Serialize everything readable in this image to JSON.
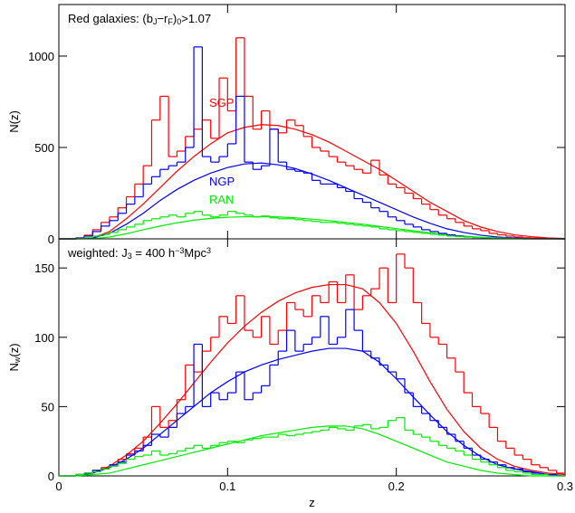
{
  "chart_data": [
    {
      "type": "histogram",
      "annotation": [
        {
          "text": "Red galaxies: (b",
          "shift": "none"
        },
        {
          "text": "J",
          "shift": "sub"
        },
        {
          "text": "−r",
          "shift": "none"
        },
        {
          "text": "F",
          "shift": "sub"
        },
        {
          "text": ")",
          "shift": "none"
        },
        {
          "text": "0",
          "shift": "sub"
        },
        {
          "text": ">1.07",
          "shift": "none"
        }
      ],
      "ylabel": [
        {
          "text": "N(z)",
          "shift": "none"
        }
      ],
      "xlim": [
        0,
        0.3
      ],
      "ylim": [
        0,
        1282
      ],
      "xticks": [
        0,
        0.1,
        0.2,
        0.3
      ],
      "yticks": [
        0,
        500,
        1000
      ],
      "show_xtick_labels": false,
      "bins": [
        0,
        0.005,
        0.01,
        0.015,
        0.02,
        0.025,
        0.03,
        0.035,
        0.04,
        0.045,
        0.05,
        0.055,
        0.06,
        0.065,
        0.07,
        0.075,
        0.08,
        0.085,
        0.09,
        0.095,
        0.1,
        0.105,
        0.11,
        0.115,
        0.12,
        0.125,
        0.13,
        0.135,
        0.14,
        0.145,
        0.15,
        0.155,
        0.16,
        0.165,
        0.17,
        0.175,
        0.18,
        0.185,
        0.19,
        0.195,
        0.2,
        0.205,
        0.21,
        0.215,
        0.22,
        0.225,
        0.23,
        0.235,
        0.24,
        0.245,
        0.25,
        0.255,
        0.26,
        0.265,
        0.27,
        0.275,
        0.28,
        0.285,
        0.29,
        0.295,
        0.3
      ],
      "series": [
        {
          "name": "SGP",
          "color": "#ff0000",
          "values": [
            0,
            0,
            5,
            20,
            50,
            90,
            120,
            170,
            230,
            300,
            400,
            650,
            780,
            450,
            480,
            560,
            600,
            650,
            550,
            880,
            700,
            1100,
            780,
            600,
            700,
            600,
            580,
            650,
            620,
            560,
            500,
            480,
            450,
            420,
            400,
            380,
            360,
            430,
            350,
            300,
            280,
            250,
            220,
            190,
            160,
            130,
            110,
            90,
            70,
            55,
            45,
            30,
            22,
            15,
            10,
            6,
            4,
            2,
            1,
            0
          ]
        },
        {
          "name": "NGP",
          "color": "#0000ff",
          "values": [
            0,
            0,
            5,
            15,
            40,
            70,
            100,
            140,
            190,
            230,
            300,
            340,
            380,
            400,
            420,
            500,
            1050,
            450,
            420,
            450,
            520,
            780,
            420,
            380,
            400,
            600,
            420,
            380,
            370,
            360,
            320,
            300,
            300,
            280,
            260,
            220,
            200,
            170,
            150,
            120,
            100,
            80,
            65,
            50,
            40,
            30,
            22,
            15,
            10,
            7,
            5,
            3,
            2,
            1,
            1,
            0,
            0,
            0,
            0,
            0
          ]
        },
        {
          "name": "RAN",
          "color": "#00ee00",
          "values": [
            0,
            0,
            2,
            6,
            15,
            25,
            35,
            50,
            65,
            80,
            100,
            110,
            120,
            130,
            120,
            140,
            150,
            130,
            120,
            130,
            150,
            140,
            130,
            120,
            125,
            115,
            110,
            110,
            105,
            100,
            95,
            90,
            90,
            85,
            80,
            75,
            70,
            65,
            55,
            50,
            45,
            40,
            35,
            30,
            25,
            20,
            15,
            12,
            10,
            8,
            6,
            4,
            3,
            2,
            1,
            1,
            0,
            0,
            0,
            0
          ]
        }
      ],
      "curves_x": [
        0,
        0.01,
        0.02,
        0.03,
        0.04,
        0.05,
        0.06,
        0.07,
        0.08,
        0.09,
        0.1,
        0.11,
        0.12,
        0.13,
        0.14,
        0.15,
        0.16,
        0.17,
        0.18,
        0.19,
        0.2,
        0.21,
        0.22,
        0.23,
        0.24,
        0.25,
        0.26,
        0.27,
        0.28,
        0.29,
        0.3
      ],
      "curves": [
        {
          "color": "#ff0000",
          "values": [
            0,
            0,
            5,
            40,
            110,
            190,
            280,
            370,
            450,
            520,
            580,
            610,
            625,
            620,
            600,
            570,
            530,
            480,
            430,
            380,
            320,
            260,
            200,
            150,
            100,
            65,
            40,
            22,
            12,
            5,
            2
          ]
        },
        {
          "color": "#0000ff",
          "values": [
            0,
            0,
            4,
            30,
            80,
            140,
            210,
            270,
            320,
            360,
            390,
            410,
            415,
            405,
            385,
            355,
            320,
            280,
            240,
            200,
            160,
            120,
            85,
            55,
            35,
            20,
            10,
            5,
            2,
            1,
            0
          ]
        },
        {
          "color": "#00ee00",
          "values": [
            0,
            0,
            1,
            10,
            28,
            50,
            70,
            88,
            102,
            112,
            118,
            121,
            122,
            120,
            115,
            108,
            100,
            90,
            80,
            68,
            56,
            44,
            33,
            23,
            15,
            9,
            5,
            2,
            1,
            0,
            0
          ]
        }
      ]
    },
    {
      "type": "histogram",
      "annotation": [
        {
          "text": "weighted: J",
          "shift": "none"
        },
        {
          "text": "3",
          "shift": "sub"
        },
        {
          "text": " = 400 h",
          "shift": "none"
        },
        {
          "text": "−3",
          "shift": "sup"
        },
        {
          "text": "Mpc",
          "shift": "none"
        },
        {
          "text": "3",
          "shift": "sup"
        }
      ],
      "ylabel": [
        {
          "text": "N",
          "shift": "none"
        },
        {
          "text": "w",
          "shift": "sub"
        },
        {
          "text": "(z)",
          "shift": "none"
        }
      ],
      "xlabel": "z",
      "xlim": [
        0,
        0.3
      ],
      "ylim": [
        0,
        171
      ],
      "xticks": [
        0,
        0.1,
        0.2,
        0.3
      ],
      "yticks": [
        0,
        50,
        100,
        150
      ],
      "show_xtick_labels": true,
      "bins": [
        0,
        0.005,
        0.01,
        0.015,
        0.02,
        0.025,
        0.03,
        0.035,
        0.04,
        0.045,
        0.05,
        0.055,
        0.06,
        0.065,
        0.07,
        0.075,
        0.08,
        0.085,
        0.09,
        0.095,
        0.1,
        0.105,
        0.11,
        0.115,
        0.12,
        0.125,
        0.13,
        0.135,
        0.14,
        0.145,
        0.15,
        0.155,
        0.16,
        0.165,
        0.17,
        0.175,
        0.18,
        0.185,
        0.19,
        0.195,
        0.2,
        0.205,
        0.21,
        0.215,
        0.22,
        0.225,
        0.23,
        0.235,
        0.24,
        0.245,
        0.25,
        0.255,
        0.26,
        0.265,
        0.27,
        0.275,
        0.28,
        0.285,
        0.29,
        0.295,
        0.3
      ],
      "series": [
        {
          "color": "#ff0000",
          "values": [
            0,
            0,
            1,
            2,
            4,
            6,
            8,
            12,
            16,
            20,
            28,
            50,
            35,
            40,
            55,
            80,
            75,
            90,
            100,
            115,
            110,
            130,
            105,
            100,
            115,
            95,
            105,
            125,
            120,
            115,
            130,
            125,
            140,
            125,
            145,
            120,
            130,
            135,
            150,
            125,
            160,
            150,
            125,
            110,
            100,
            95,
            85,
            75,
            60,
            50,
            45,
            35,
            25,
            20,
            15,
            12,
            8,
            6,
            4,
            2
          ]
        },
        {
          "color": "#0000ff",
          "values": [
            0,
            0,
            1,
            2,
            4,
            5,
            8,
            10,
            15,
            18,
            22,
            30,
            28,
            35,
            45,
            50,
            95,
            50,
            60,
            55,
            60,
            75,
            55,
            60,
            65,
            80,
            90,
            105,
            90,
            95,
            100,
            115,
            95,
            100,
            120,
            105,
            90,
            85,
            80,
            75,
            70,
            60,
            50,
            45,
            40,
            35,
            30,
            25,
            20,
            15,
            12,
            10,
            8,
            6,
            5,
            3,
            2,
            1,
            1,
            0
          ]
        },
        {
          "color": "#00ee00",
          "values": [
            0,
            0,
            1,
            2,
            3,
            5,
            7,
            9,
            12,
            14,
            15,
            18,
            15,
            16,
            18,
            20,
            22,
            20,
            22,
            24,
            25,
            24,
            26,
            27,
            28,
            28,
            30,
            29,
            30,
            31,
            32,
            33,
            35,
            34,
            33,
            36,
            37,
            34,
            35,
            40,
            42,
            33,
            30,
            28,
            25,
            22,
            20,
            18,
            15,
            12,
            10,
            8,
            6,
            4,
            3,
            2,
            1,
            1,
            0,
            0
          ]
        }
      ],
      "curves_x": [
        0,
        0.01,
        0.02,
        0.03,
        0.04,
        0.05,
        0.06,
        0.07,
        0.08,
        0.09,
        0.1,
        0.11,
        0.12,
        0.13,
        0.14,
        0.15,
        0.16,
        0.17,
        0.18,
        0.19,
        0.2,
        0.21,
        0.22,
        0.23,
        0.24,
        0.25,
        0.26,
        0.27,
        0.28,
        0.29,
        0.3
      ],
      "curves": [
        {
          "color": "#ff0000",
          "values": [
            0,
            0,
            2,
            7,
            15,
            25,
            38,
            52,
            67,
            82,
            96,
            108,
            118,
            126,
            132,
            136,
            138,
            138,
            135,
            125,
            110,
            90,
            68,
            48,
            32,
            20,
            12,
            7,
            4,
            2,
            1
          ]
        },
        {
          "color": "#0000ff",
          "values": [
            0,
            0,
            2,
            6,
            12,
            20,
            30,
            40,
            50,
            60,
            68,
            75,
            80,
            84,
            87,
            90,
            92,
            92,
            90,
            82,
            70,
            57,
            44,
            32,
            22,
            14,
            8,
            5,
            3,
            1,
            0
          ]
        },
        {
          "color": "#00ee00",
          "values": [
            0,
            0,
            1,
            2,
            5,
            8,
            11,
            14,
            17,
            20,
            23,
            26,
            29,
            31,
            33,
            35,
            36,
            36,
            34,
            30,
            25,
            20,
            15,
            10,
            7,
            4,
            2,
            1,
            0,
            0,
            0
          ]
        }
      ]
    }
  ]
}
